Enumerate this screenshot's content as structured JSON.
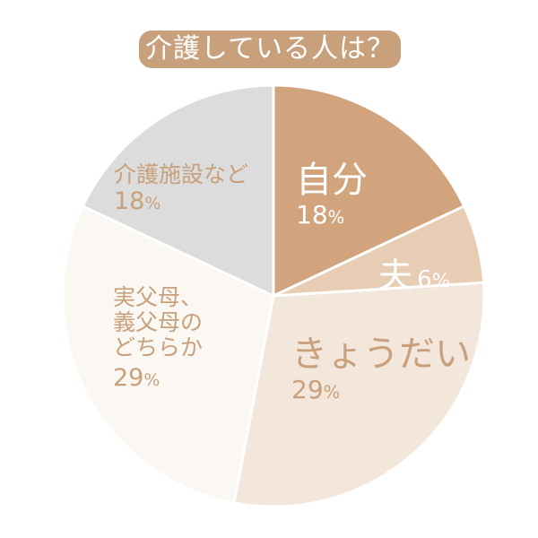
{
  "title": "介護している人は？",
  "chart_data": {
    "type": "pie",
    "title": "介護している人は？",
    "start_angle_deg": 0,
    "direction": "clockwise",
    "categories": [
      "自分",
      "夫",
      "きょうだい",
      "実父母、義父母のどちらか",
      "介護施設など"
    ],
    "values": [
      18,
      6,
      29,
      29,
      18
    ],
    "unit": "%",
    "colors": [
      "#d1a47e",
      "#e7cdb4",
      "#f3e6db",
      "#fbf7f2",
      "#dcdcdc"
    ],
    "legend": "none (labels inside slices)"
  },
  "labels": [
    {
      "name": "自分",
      "pct": "18",
      "unit": "%"
    },
    {
      "name": "夫",
      "pct": "6",
      "unit": "%"
    },
    {
      "name": "きょうだい",
      "pct": "29",
      "unit": "%"
    },
    {
      "name_lines": [
        "実父母、",
        "義父母の",
        "どちらか"
      ],
      "pct": "29",
      "unit": "%"
    },
    {
      "name": "介護施設など",
      "pct": "18",
      "unit": "%"
    }
  ]
}
